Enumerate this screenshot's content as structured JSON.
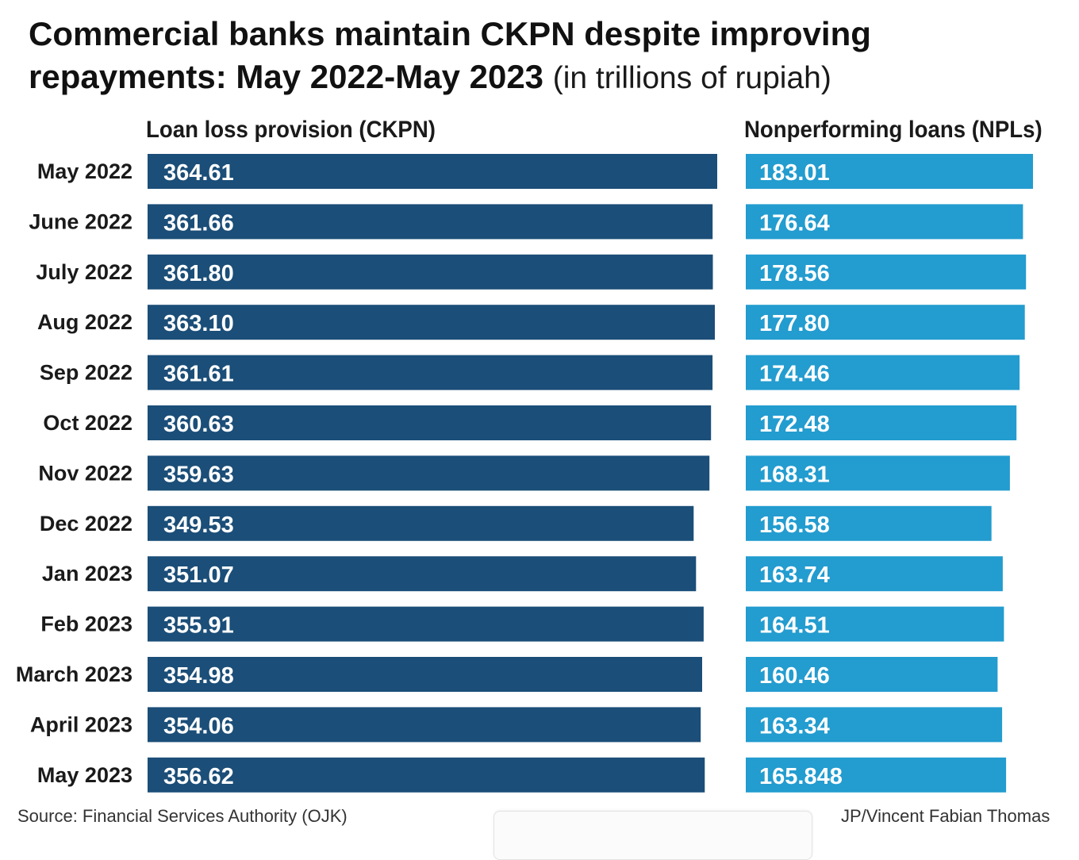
{
  "title": {
    "main": "Commercial banks maintain CKPN despite improving repayments: May 2022-May 2023",
    "unit": "(in trillions of rupiah)"
  },
  "source": "Source: Financial Services Authority (OJK)",
  "credit": "JP/Vincent Fabian Thomas",
  "colors": {
    "ckpn": "#1b4e78",
    "npl": "#239ccf"
  },
  "chart_data": {
    "type": "bar",
    "orientation": "horizontal",
    "categories": [
      "May 2022",
      "June 2022",
      "July 2022",
      "Aug 2022",
      "Sep 2022",
      "Oct 2022",
      "Nov 2022",
      "Dec 2022",
      "Jan 2023",
      "Feb 2023",
      "March 2023",
      "April 2023",
      "May 2023"
    ],
    "series": [
      {
        "name": "Loan loss provision (CKPN)",
        "values": [
          364.61,
          361.66,
          361.8,
          363.1,
          361.61,
          360.63,
          359.63,
          349.53,
          351.07,
          355.91,
          354.98,
          354.06,
          356.62
        ],
        "labels": [
          "364.61",
          "361.66",
          "361.80",
          "363.10",
          "361.61",
          "360.63",
          "359.63",
          "349.53",
          "351.07",
          "355.91",
          "354.98",
          "354.06",
          "356.62"
        ]
      },
      {
        "name": "Nonperforming loans (NPLs)",
        "values": [
          183.01,
          176.64,
          178.56,
          177.8,
          174.46,
          172.48,
          168.31,
          156.58,
          163.74,
          164.51,
          160.46,
          163.34,
          165.848
        ],
        "labels": [
          "183.01",
          "176.64",
          "178.56",
          "177.80",
          "174.46",
          "172.48",
          "168.31",
          "156.58",
          "163.74",
          "164.51",
          "160.46",
          "163.34",
          "165.848"
        ]
      }
    ],
    "grid": false,
    "legend": "column headers"
  }
}
